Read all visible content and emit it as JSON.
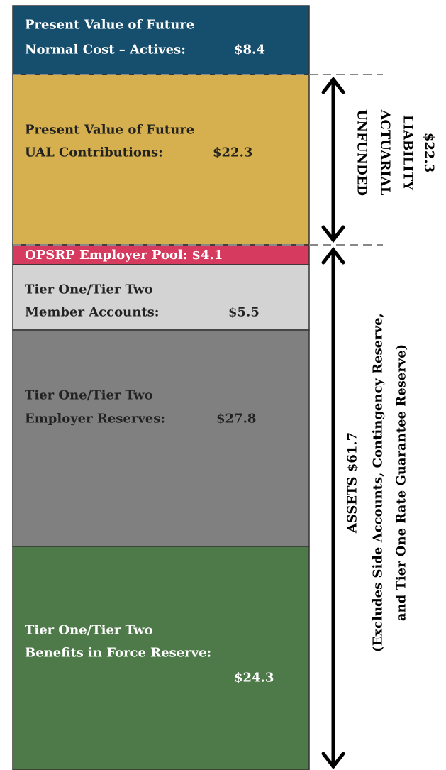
{
  "segments": [
    {
      "lines": [
        "Present Value of Future",
        "Normal Cost – Actives:"
      ],
      "amount": "$8.4"
    },
    {
      "lines": [
        "Present Value of Future",
        "UAL Contributions:"
      ],
      "amount": "$22.3"
    },
    {
      "lines": [
        "OPSRP Employer Pool:"
      ],
      "amount": "$4.1"
    },
    {
      "lines": [
        "Tier One/Tier Two",
        "Member Accounts:"
      ],
      "amount": "$5.5"
    },
    {
      "lines": [
        "Tier One/Tier Two",
        "Employer Reserves:"
      ],
      "amount": "$27.8"
    },
    {
      "lines": [
        "Tier One/Tier Two",
        "Benefits in Force Reserve:"
      ],
      "amount": "$24.3"
    }
  ],
  "liability": {
    "lines": [
      "UNFUNDED",
      "ACTUARIAL",
      "LIABILITY",
      "$22.3"
    ]
  },
  "assets": {
    "lines": [
      "ASSETS $61.7",
      "(Excludes Side Accounts, Contingency Reserve,",
      "and Tier One Rate Guarantee Reserve)"
    ]
  }
}
